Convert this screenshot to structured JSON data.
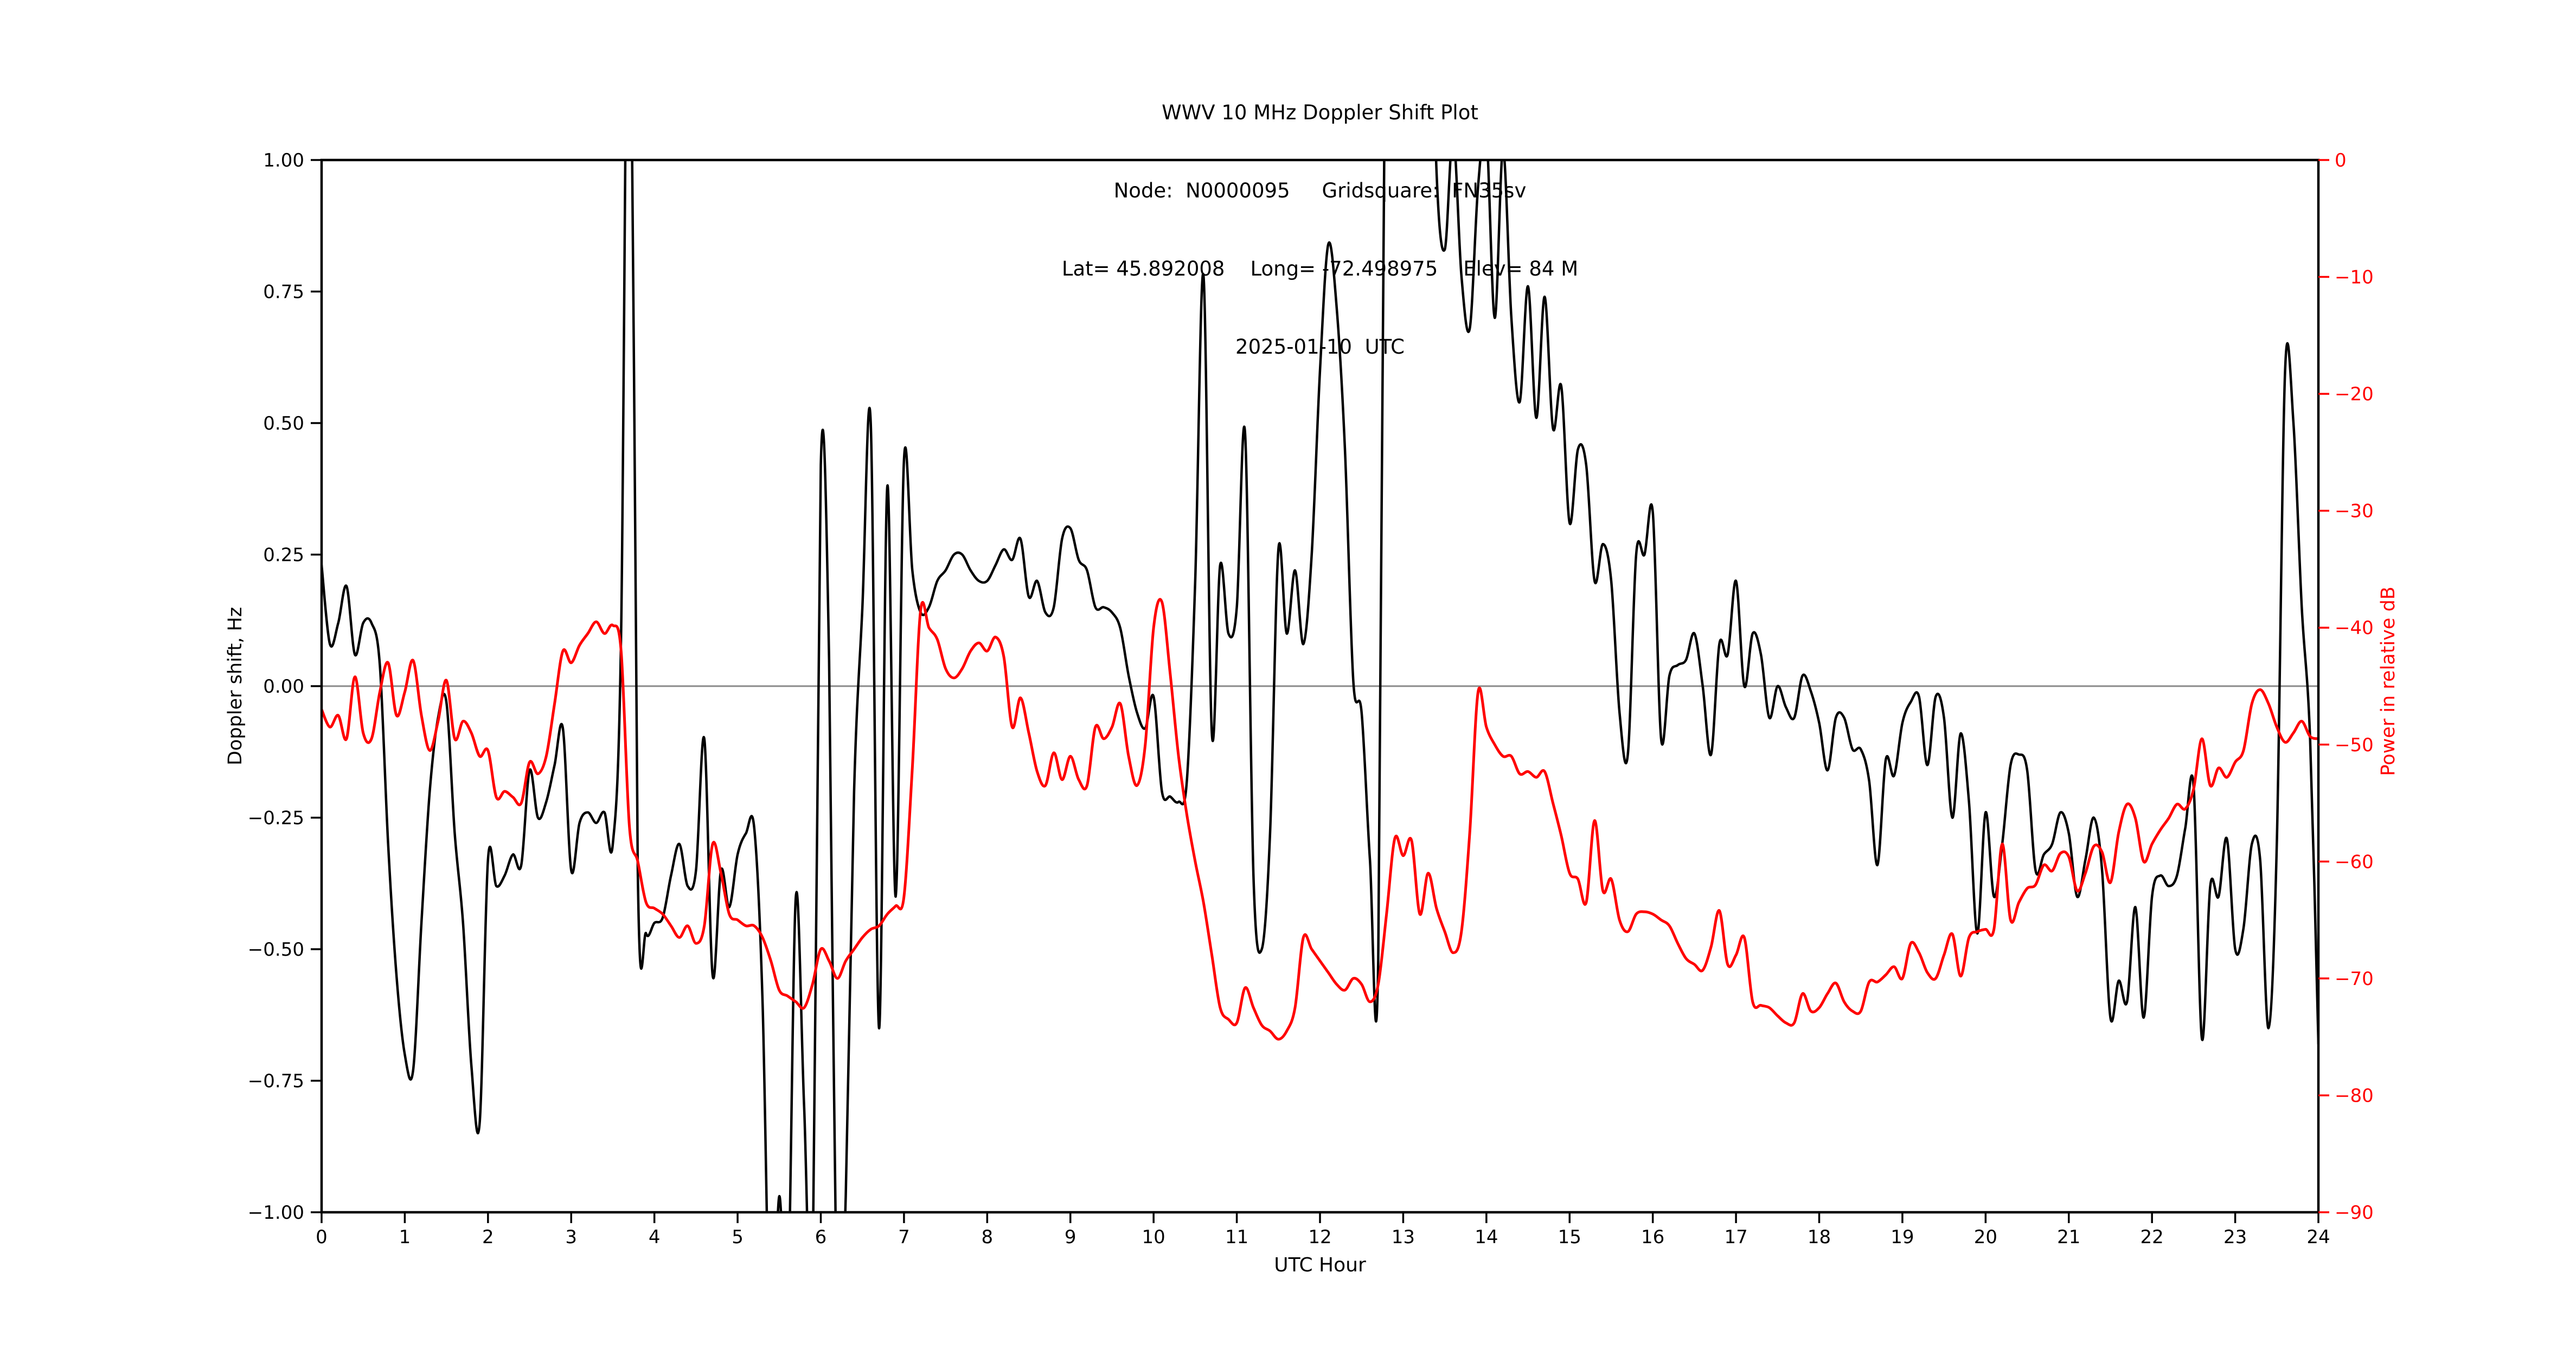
{
  "title": {
    "line1": "WWV 10 MHz Doppler Shift Plot",
    "line2": "Node:  N0000095     Gridsquare:  FN35sv",
    "line3": "Lat= 45.892008    Long= -72.498975    Elev= 84 M",
    "line4": "2025-01-10  UTC"
  },
  "colors": {
    "doppler_line": "#000000",
    "power_line": "#ff0000",
    "zero_line": "#8a8a8a",
    "spine": "#000000",
    "right_tick": "#ff0000"
  },
  "axes": {
    "x": {
      "label": "UTC Hour",
      "min": 0,
      "max": 24,
      "tick_labels": [
        "0",
        "1",
        "2",
        "3",
        "4",
        "5",
        "6",
        "7",
        "8",
        "9",
        "10",
        "11",
        "12",
        "13",
        "14",
        "15",
        "16",
        "17",
        "18",
        "19",
        "20",
        "21",
        "22",
        "23",
        "24"
      ]
    },
    "y_left": {
      "label": "Doppler shift, Hz",
      "min": -1.0,
      "max": 1.0,
      "tick_labels": [
        "1.00",
        "0.75",
        "0.50",
        "0.25",
        "0.00",
        "−0.25",
        "−0.50",
        "−0.75",
        "−1.00"
      ]
    },
    "y_right": {
      "label": "Power in relative dB",
      "min": -90,
      "max": 0,
      "tick_labels": [
        "0",
        "−10",
        "−20",
        "−30",
        "−40",
        "−50",
        "−60",
        "−70",
        "−80",
        "−90"
      ]
    }
  },
  "chart_data": {
    "type": "line",
    "title": "WWV 10 MHz Doppler Shift Plot",
    "xlabel": "UTC Hour",
    "ylabel_left": "Doppler shift, Hz",
    "ylabel_right": "Power in relative dB",
    "xlim": [
      0,
      24
    ],
    "ylim_left": [
      -1.0,
      1.0
    ],
    "ylim_right": [
      -90,
      0
    ],
    "grid": "zero-line-only",
    "legend": "none",
    "x_start": 0,
    "x_step": 0.1,
    "note_clipping": "Doppler trace is clipped at +1.0 Hz (offscale high near 3.6-3.75 h and 12.76-14.25 h) and at -1.0 Hz (offscale low near 5.3-6.3 h); values beyond the limits encode the clipped excursions.",
    "series": [
      {
        "name": "Doppler shift (Hz)",
        "axis": "left",
        "color": "#000000",
        "values": [
          0.23,
          0.08,
          0.12,
          0.19,
          0.06,
          0.12,
          0.12,
          0.04,
          -0.3,
          -0.55,
          -0.7,
          -0.73,
          -0.45,
          -0.2,
          -0.06,
          -0.03,
          -0.28,
          -0.45,
          -0.72,
          -0.83,
          -0.33,
          -0.38,
          -0.36,
          -0.32,
          -0.34,
          -0.16,
          -0.25,
          -0.22,
          -0.15,
          -0.08,
          -0.35,
          -0.26,
          -0.24,
          -0.26,
          -0.24,
          -0.3,
          0.1,
          1.6,
          -0.35,
          -0.47,
          -0.45,
          -0.44,
          -0.36,
          -0.3,
          -0.38,
          -0.35,
          -0.1,
          -0.55,
          -0.35,
          -0.42,
          -0.32,
          -0.28,
          -0.27,
          -0.6,
          -1.3,
          -0.97,
          -1.2,
          -0.4,
          -0.8,
          -1.15,
          0.42,
          0.05,
          -1.3,
          -0.97,
          -0.2,
          0.15,
          0.5,
          -0.65,
          0.38,
          -0.4,
          0.43,
          0.22,
          0.14,
          0.15,
          0.2,
          0.22,
          0.25,
          0.25,
          0.22,
          0.2,
          0.2,
          0.23,
          0.26,
          0.24,
          0.28,
          0.17,
          0.2,
          0.14,
          0.15,
          0.28,
          0.3,
          0.24,
          0.22,
          0.15,
          0.15,
          0.14,
          0.11,
          0.02,
          -0.05,
          -0.08,
          -0.02,
          -0.2,
          -0.21,
          -0.22,
          -0.18,
          0.2,
          0.78,
          -0.09,
          0.23,
          0.1,
          0.15,
          0.48,
          -0.36,
          -0.5,
          -0.28,
          0.26,
          0.1,
          0.22,
          0.08,
          0.25,
          0.6,
          0.84,
          0.72,
          0.45,
          0.01,
          -0.05,
          -0.33,
          -0.52,
          1.6,
          1.6,
          1.6,
          1.6,
          1.6,
          1.6,
          0.98,
          0.83,
          1.05,
          0.78,
          0.68,
          0.95,
          1.05,
          0.7,
          1.02,
          0.7,
          0.54,
          0.76,
          0.51,
          0.74,
          0.49,
          0.57,
          0.31,
          0.45,
          0.42,
          0.2,
          0.27,
          0.2,
          -0.05,
          -0.13,
          0.25,
          0.25,
          0.33,
          -0.1,
          0.02,
          0.04,
          0.05,
          0.1,
          0.0,
          -0.13,
          0.08,
          0.06,
          0.2,
          0.0,
          0.1,
          0.06,
          -0.06,
          0.0,
          -0.04,
          -0.06,
          0.02,
          -0.01,
          -0.07,
          -0.16,
          -0.06,
          -0.06,
          -0.12,
          -0.12,
          -0.18,
          -0.34,
          -0.14,
          -0.17,
          -0.07,
          -0.03,
          -0.02,
          -0.15,
          -0.02,
          -0.06,
          -0.25,
          -0.09,
          -0.22,
          -0.47,
          -0.24,
          -0.4,
          -0.3,
          -0.15,
          -0.13,
          -0.16,
          -0.35,
          -0.32,
          -0.3,
          -0.24,
          -0.28,
          -0.4,
          -0.33,
          -0.25,
          -0.35,
          -0.63,
          -0.56,
          -0.6,
          -0.42,
          -0.63,
          -0.4,
          -0.36,
          -0.38,
          -0.36,
          -0.27,
          -0.19,
          -0.67,
          -0.38,
          -0.4,
          -0.29,
          -0.5,
          -0.46,
          -0.3,
          -0.33,
          -0.65,
          -0.3,
          0.6,
          0.5,
          0.15,
          -0.1,
          -0.68
        ]
      },
      {
        "name": "Power (relative dB)",
        "axis": "right",
        "color": "#ff0000",
        "values": [
          -47.0,
          -48.5,
          -47.5,
          -49.5,
          -44.2,
          -49.0,
          -49.5,
          -45.5,
          -43.0,
          -47.5,
          -45.5,
          -42.8,
          -47.5,
          -50.5,
          -48.0,
          -44.5,
          -49.5,
          -48.0,
          -49.0,
          -51.0,
          -50.5,
          -54.5,
          -54.0,
          -54.5,
          -55.0,
          -51.5,
          -52.5,
          -51.0,
          -46.5,
          -42.0,
          -43.0,
          -41.5,
          -40.5,
          -39.5,
          -40.5,
          -39.8,
          -42.0,
          -57.0,
          -60.0,
          -63.5,
          -64.0,
          -64.5,
          -65.5,
          -66.5,
          -65.5,
          -67.0,
          -65.5,
          -58.5,
          -61.0,
          -64.5,
          -65.0,
          -65.5,
          -65.5,
          -66.5,
          -68.5,
          -71.0,
          -71.5,
          -72.0,
          -72.5,
          -70.5,
          -67.5,
          -68.5,
          -70.0,
          -68.5,
          -67.5,
          -66.5,
          -65.8,
          -65.5,
          -64.5,
          -63.8,
          -63.0,
          -52.0,
          -38.5,
          -40.0,
          -41.0,
          -43.5,
          -44.3,
          -43.5,
          -42.0,
          -41.3,
          -42.0,
          -40.8,
          -42.5,
          -48.5,
          -46.0,
          -49.0,
          -52.3,
          -53.5,
          -50.7,
          -53.0,
          -51.0,
          -53.0,
          -53.5,
          -48.5,
          -49.5,
          -48.5,
          -46.5,
          -51.0,
          -53.5,
          -50.0,
          -40.0,
          -37.8,
          -44.0,
          -51.0,
          -56.0,
          -60.0,
          -63.5,
          -68.0,
          -72.5,
          -73.5,
          -73.8,
          -70.8,
          -72.5,
          -74.0,
          -74.5,
          -75.2,
          -74.5,
          -72.5,
          -66.5,
          -67.5,
          -68.5,
          -69.5,
          -70.5,
          -71.0,
          -70.0,
          -70.5,
          -72.0,
          -70.5,
          -64.5,
          -58.0,
          -59.5,
          -58.2,
          -64.5,
          -61.0,
          -64.0,
          -66.0,
          -67.8,
          -66.0,
          -57.5,
          -45.5,
          -48.5,
          -50.0,
          -51.0,
          -51.0,
          -52.5,
          -52.3,
          -52.8,
          -52.3,
          -55.0,
          -57.8,
          -61.0,
          -61.5,
          -63.5,
          -56.5,
          -62.5,
          -61.5,
          -65.0,
          -66.0,
          -64.5,
          -64.3,
          -64.5,
          -65.0,
          -65.5,
          -67.0,
          -68.3,
          -68.8,
          -69.3,
          -67.3,
          -64.2,
          -68.8,
          -68.0,
          -66.5,
          -72.0,
          -72.3,
          -72.5,
          -73.2,
          -73.8,
          -73.8,
          -71.3,
          -72.8,
          -72.5,
          -71.3,
          -70.4,
          -72.0,
          -72.8,
          -72.8,
          -70.3,
          -70.3,
          -69.7,
          -69.0,
          -70.0,
          -67.0,
          -67.8,
          -69.5,
          -70.0,
          -68.0,
          -66.2,
          -69.8,
          -66.5,
          -66.0,
          -65.8,
          -65.8,
          -58.5,
          -65.0,
          -63.5,
          -62.3,
          -62.0,
          -60.3,
          -60.8,
          -59.3,
          -59.6,
          -62.5,
          -61.0,
          -58.7,
          -59.2,
          -61.8,
          -57.5,
          -55.1,
          -56.3,
          -60.0,
          -58.5,
          -57.3,
          -56.3,
          -55.1,
          -55.5,
          -53.8,
          -49.5,
          -53.5,
          -52.0,
          -52.8,
          -51.5,
          -50.5,
          -46.5,
          -45.3,
          -46.5,
          -48.5,
          -49.8,
          -49.0,
          -48.0,
          -49.3,
          -49.5
        ]
      }
    ]
  }
}
